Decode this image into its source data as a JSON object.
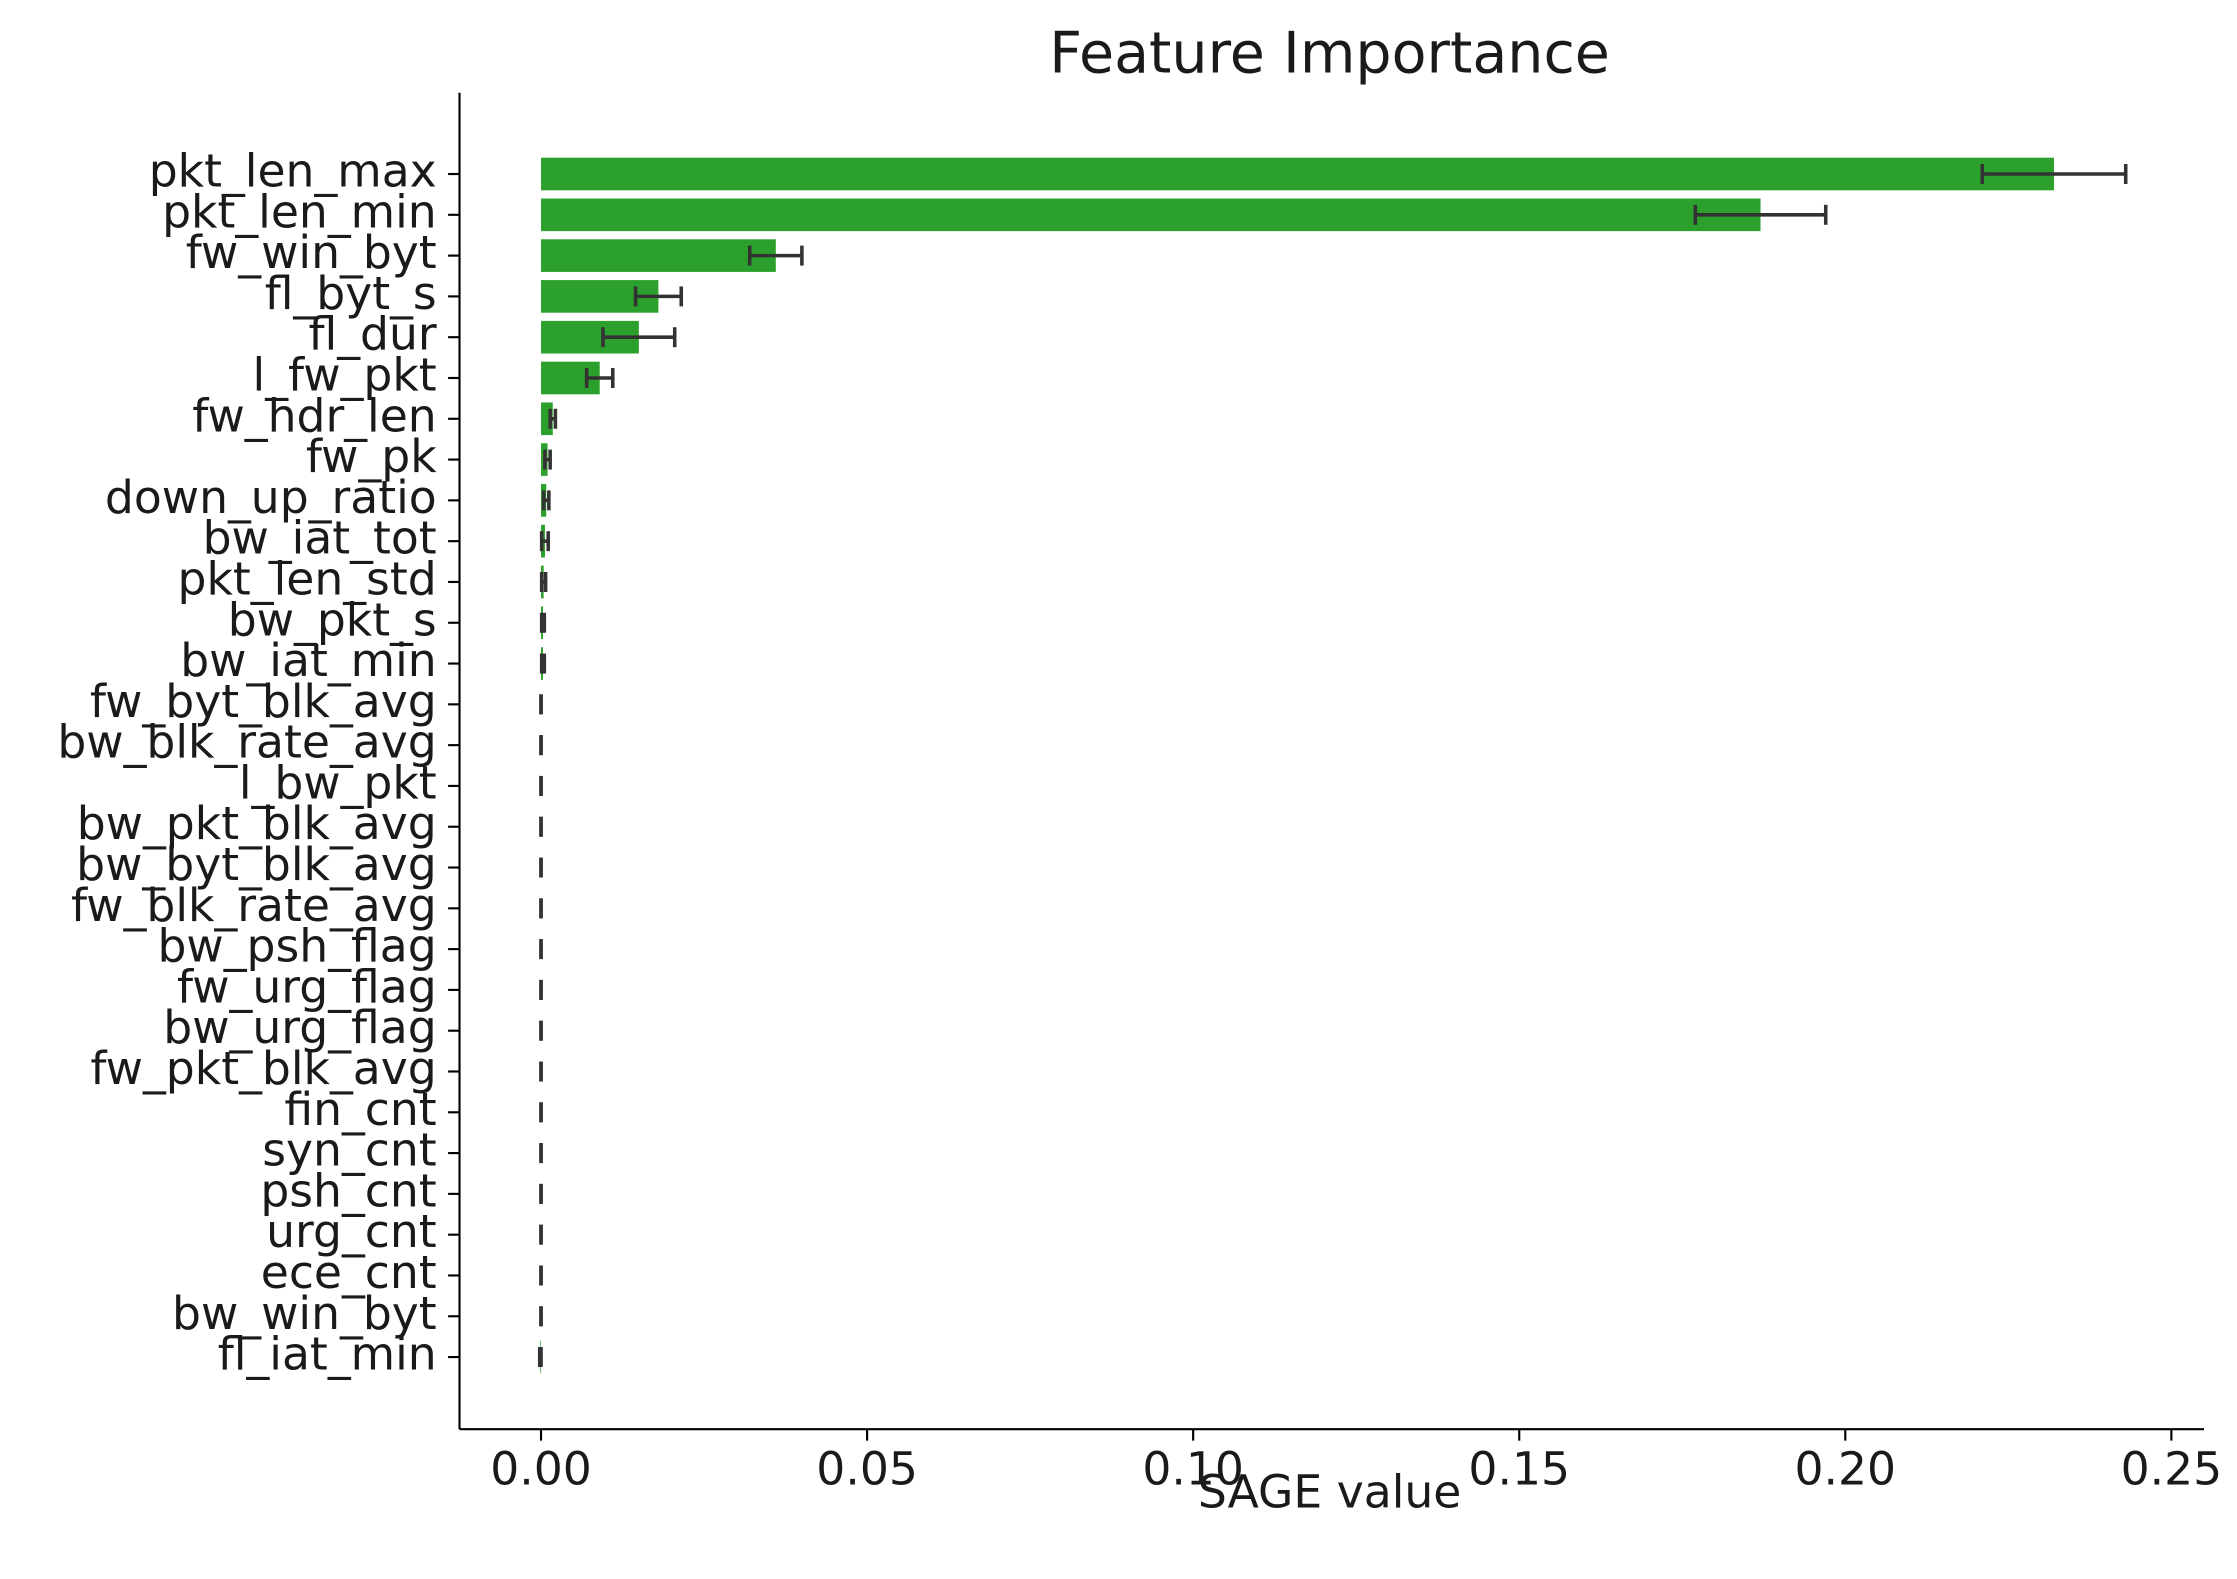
{
  "chart_data": {
    "type": "barh",
    "title": "Feature Importance",
    "x_label": "SAGE value",
    "categories": [
      "pkt_len_max",
      "pkt_len_min",
      "fw_win_byt",
      "fl_byt_s",
      "fl_dur",
      "l_fw_pkt",
      "fw_hdr_len",
      "fw_pk",
      "down_up_ratio",
      "bw_iat_tot",
      "pkt_len_std",
      "bw_pkt_s",
      "bw_iat_min",
      "fw_byt_blk_avg",
      "bw_blk_rate_avg",
      "l_bw_pkt",
      "bw_pkt_blk_avg",
      "bw_byt_blk_avg",
      "fw_blk_rate_avg",
      "bw_psh_flag",
      "fw_urg_flag",
      "bw_urg_flag",
      "fw_pkt_blk_avg",
      "fin_cnt",
      "syn_cnt",
      "psh_cnt",
      "urg_cnt",
      "ece_cnt",
      "bw_win_byt",
      "fl_iat_min"
    ],
    "values": [
      0.232,
      0.187,
      0.036,
      0.018,
      0.015,
      0.009,
      0.0018,
      0.001,
      0.0008,
      0.0006,
      0.0004,
      0.0003,
      0.0003,
      0,
      0,
      0,
      0,
      0,
      0,
      0,
      0,
      0,
      0,
      0,
      0,
      0,
      0,
      0,
      0,
      -0.0001
    ],
    "errors": [
      0.011,
      0.01,
      0.004,
      0.0035,
      0.0055,
      0.002,
      0.0004,
      0.0004,
      0.0004,
      0.0005,
      0.0003,
      0.0002,
      0.0002,
      0,
      0,
      0,
      0,
      0,
      0,
      0,
      0,
      0,
      0,
      0,
      0,
      0,
      0,
      0,
      0,
      0.0001
    ],
    "color": "#2ca02c",
    "error_color": "#333333",
    "xlim": [
      -0.0125,
      0.255
    ],
    "xticks": [
      {
        "value": 0,
        "label": "0.00"
      },
      0.05,
      {
        "value": 0.1,
        "label": "0.10"
      },
      0.15,
      {
        "value": 0.2,
        "label": "0.20"
      },
      0.25
    ]
  }
}
